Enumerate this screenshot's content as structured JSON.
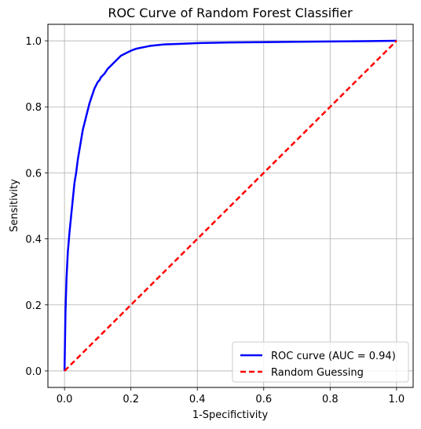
{
  "chart_data": {
    "type": "line",
    "title": "ROC Curve of Random Forest Classifier",
    "xlabel": "1-Specifictivity",
    "ylabel": "Sensitivity",
    "xlim": [
      -0.05,
      1.05
    ],
    "ylim": [
      -0.05,
      1.05
    ],
    "xticks": [
      "0.0",
      "0.2",
      "0.4",
      "0.6",
      "0.8",
      "1.0"
    ],
    "yticks": [
      "0.0",
      "0.2",
      "0.4",
      "0.6",
      "0.8",
      "1.0"
    ],
    "grid": true,
    "legend_position": "lower-right",
    "series": [
      {
        "name": "ROC curve (AUC = 0.94)",
        "color": "#0000ff",
        "style": "solid",
        "x": [
          0.0,
          0.003,
          0.006,
          0.01,
          0.015,
          0.02,
          0.025,
          0.03,
          0.035,
          0.04,
          0.045,
          0.05,
          0.055,
          0.06,
          0.065,
          0.07,
          0.075,
          0.08,
          0.085,
          0.09,
          0.095,
          0.1,
          0.105,
          0.11,
          0.12,
          0.13,
          0.14,
          0.15,
          0.16,
          0.17,
          0.18,
          0.19,
          0.2,
          0.21,
          0.22,
          0.23,
          0.24,
          0.25,
          0.26,
          0.28,
          0.3,
          0.35,
          0.4,
          0.5,
          0.6,
          0.7,
          0.8,
          0.9,
          1.0
        ],
        "y": [
          0.0,
          0.18,
          0.28,
          0.36,
          0.42,
          0.47,
          0.52,
          0.57,
          0.6,
          0.64,
          0.67,
          0.7,
          0.73,
          0.75,
          0.77,
          0.79,
          0.81,
          0.825,
          0.84,
          0.855,
          0.865,
          0.875,
          0.88,
          0.89,
          0.9,
          0.915,
          0.925,
          0.935,
          0.945,
          0.955,
          0.96,
          0.965,
          0.97,
          0.974,
          0.977,
          0.979,
          0.981,
          0.983,
          0.985,
          0.987,
          0.989,
          0.991,
          0.993,
          0.995,
          0.996,
          0.997,
          0.998,
          0.999,
          1.0
        ]
      },
      {
        "name": "Random Guessing",
        "color": "#ff0000",
        "style": "dashed",
        "x": [
          0.0,
          1.0
        ],
        "y": [
          0.0,
          1.0
        ]
      }
    ]
  }
}
